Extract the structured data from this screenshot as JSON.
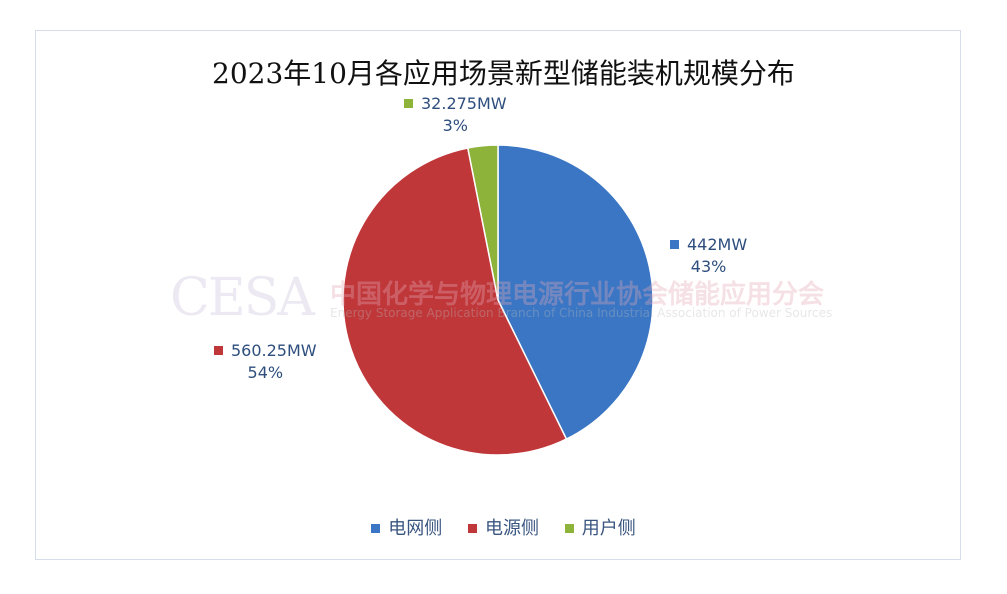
{
  "chart_data": {
    "type": "pie",
    "title": "2023年10月各应用场景新型储能装机规模分布",
    "start_angle": "top",
    "direction": "clockwise",
    "slices": [
      {
        "name": "电网侧",
        "value": 442,
        "value_label": "442MW",
        "percent_label": "43%",
        "color": "#3a76c4"
      },
      {
        "name": "电源侧",
        "value": 560.25,
        "value_label": "560.25MW",
        "percent_label": "54%",
        "color": "#c0373a"
      },
      {
        "name": "用户侧",
        "value": 32.275,
        "value_label": "32.275MW",
        "percent_label": "3%",
        "color": "#8db33a"
      }
    ],
    "legend_placement": "bottom"
  },
  "watermark": {
    "logo": "CESA",
    "cn": "中国化学与物理电源行业协会储能应用分会",
    "en": "Energy Storage Application Branch of China Industrial Association of Power Sources"
  }
}
